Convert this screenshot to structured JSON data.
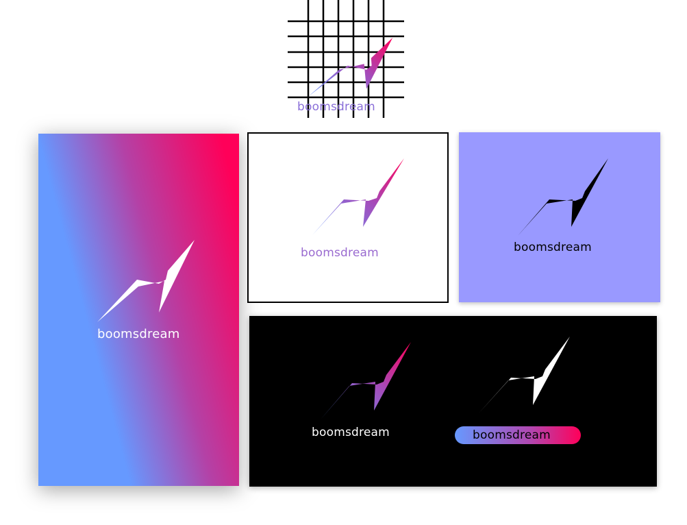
{
  "brand": {
    "name": "boomsdream"
  },
  "colors": {
    "blue": "#6699ff",
    "purple": "#a64ab8",
    "pink": "#ff0059",
    "lavender": "#9999ff",
    "black": "#000000",
    "white": "#ffffff"
  },
  "mockups": {
    "grid": {
      "wordmark": "boomsdream",
      "icon": "logo-mark-icon"
    },
    "tall_card": {
      "wordmark": "boomsdream",
      "background": "gradient"
    },
    "white_card": {
      "wordmark": "boomsdream",
      "background": "#ffffff"
    },
    "lavender_card": {
      "wordmark": "boomsdream",
      "background": "#9999ff"
    },
    "black_banner": {
      "left_wordmark": "boomsdream",
      "right_wordmark": "boomsdream",
      "background": "#000000"
    }
  }
}
